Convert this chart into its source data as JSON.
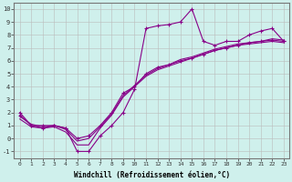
{
  "xlabel": "Windchill (Refroidissement éolien,°C)",
  "xlim": [
    -0.5,
    23.5
  ],
  "ylim": [
    -1.5,
    10.5
  ],
  "xticks": [
    0,
    1,
    2,
    3,
    4,
    5,
    6,
    7,
    8,
    9,
    10,
    11,
    12,
    13,
    14,
    15,
    16,
    17,
    18,
    19,
    20,
    21,
    22,
    23
  ],
  "yticks": [
    -1,
    0,
    1,
    2,
    3,
    4,
    5,
    6,
    7,
    8,
    9,
    10
  ],
  "bg_color": "#cff0ec",
  "line_color": "#880088",
  "grid_color": "#bbbbbb",
  "line1_x": [
    0,
    1,
    2,
    3,
    4,
    5,
    6,
    7,
    8,
    9,
    10,
    11,
    12,
    13,
    14,
    15,
    16,
    17,
    18,
    19,
    20,
    21,
    22,
    23
  ],
  "line1_y": [
    2,
    1,
    0.8,
    1,
    0.8,
    -1,
    -1,
    0.2,
    1,
    2,
    3.8,
    8.5,
    8.7,
    8.8,
    9,
    10,
    7.5,
    7.2,
    7.5,
    7.5,
    8,
    8.3,
    8.5,
    7.5
  ],
  "line2_x": [
    0,
    1,
    2,
    3,
    4,
    5,
    6,
    7,
    8,
    9,
    10,
    11,
    12,
    13,
    14,
    15,
    16,
    17,
    18,
    19,
    20,
    21,
    22,
    23
  ],
  "line2_y": [
    1.8,
    1,
    1,
    1,
    0.8,
    0,
    0.2,
    1,
    2,
    3.5,
    4,
    5,
    5.5,
    5.7,
    6.0,
    6.2,
    6.5,
    6.8,
    7.0,
    7.2,
    7.4,
    7.5,
    7.6,
    7.5
  ],
  "line3_x": [
    0,
    1,
    2,
    3,
    4,
    5,
    6,
    7,
    8,
    9,
    10,
    11,
    12,
    13,
    14,
    15,
    16,
    17,
    18,
    19,
    20,
    21,
    22,
    23
  ],
  "line3_y": [
    1.5,
    0.9,
    0.8,
    0.9,
    0.5,
    -0.5,
    -0.5,
    0.8,
    1.8,
    3.2,
    4.0,
    4.8,
    5.3,
    5.6,
    5.9,
    6.2,
    6.5,
    6.8,
    7.0,
    7.2,
    7.3,
    7.4,
    7.5,
    7.4
  ],
  "line4_x": [
    0,
    1,
    2,
    3,
    4,
    5,
    6,
    7,
    8,
    9,
    10,
    11,
    12,
    13,
    14,
    15,
    16,
    17,
    18,
    19,
    20,
    21,
    22,
    23
  ],
  "line4_y": [
    1.7,
    1.1,
    0.9,
    1.0,
    0.7,
    -0.2,
    0.0,
    0.9,
    1.9,
    3.3,
    4.1,
    4.9,
    5.4,
    5.7,
    6.1,
    6.3,
    6.6,
    6.9,
    7.1,
    7.3,
    7.4,
    7.5,
    7.7,
    7.6
  ],
  "marker": "+",
  "markersize": 3,
  "linewidth": 0.8
}
